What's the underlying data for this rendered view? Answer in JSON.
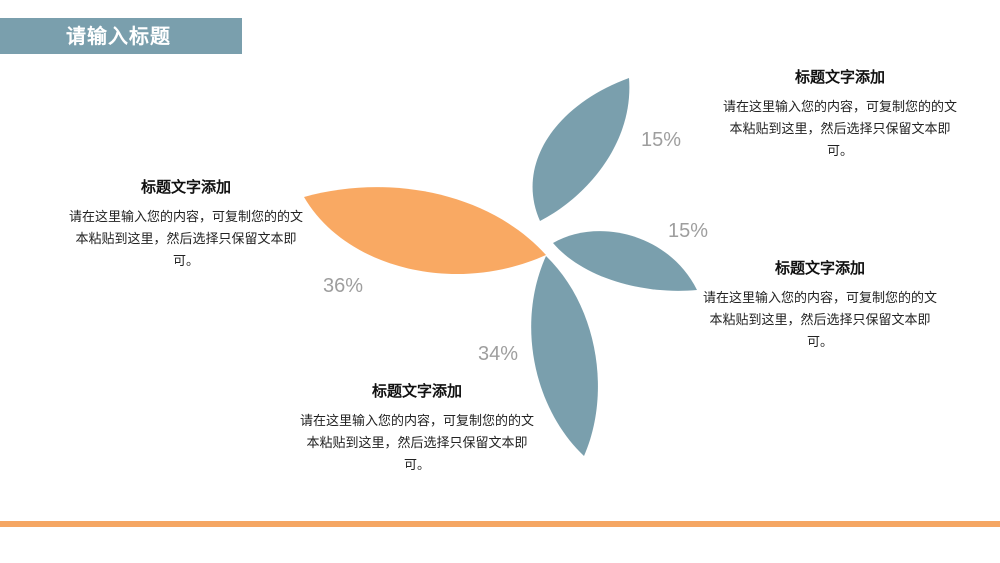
{
  "header": {
    "title": "请输入标题"
  },
  "colors": {
    "accent_orange": "#f9a963",
    "petal_blue": "#7a9fad",
    "title_bar": "#7a9fad",
    "bottom_line": "#f5a663"
  },
  "items": [
    {
      "percent": "15%",
      "title": "标题文字添加",
      "body": "请在这里输入您的内容，可复制您的的文本粘贴到这里，然后选择只保留文本即可。"
    },
    {
      "percent": "15%",
      "title": "标题文字添加",
      "body": "请在这里输入您的内容，可复制您的的文本粘贴到这里，然后选择只保留文本即可。"
    },
    {
      "percent": "34%",
      "title": "标题文字添加",
      "body": "请在这里输入您的内容，可复制您的的文本粘贴到这里，然后选择只保留文本即可。"
    },
    {
      "percent": "36%",
      "title": "标题文字添加",
      "body": "请在这里输入您的内容，可复制您的的文本粘贴到这里，然后选择只保留文本即可。"
    }
  ]
}
